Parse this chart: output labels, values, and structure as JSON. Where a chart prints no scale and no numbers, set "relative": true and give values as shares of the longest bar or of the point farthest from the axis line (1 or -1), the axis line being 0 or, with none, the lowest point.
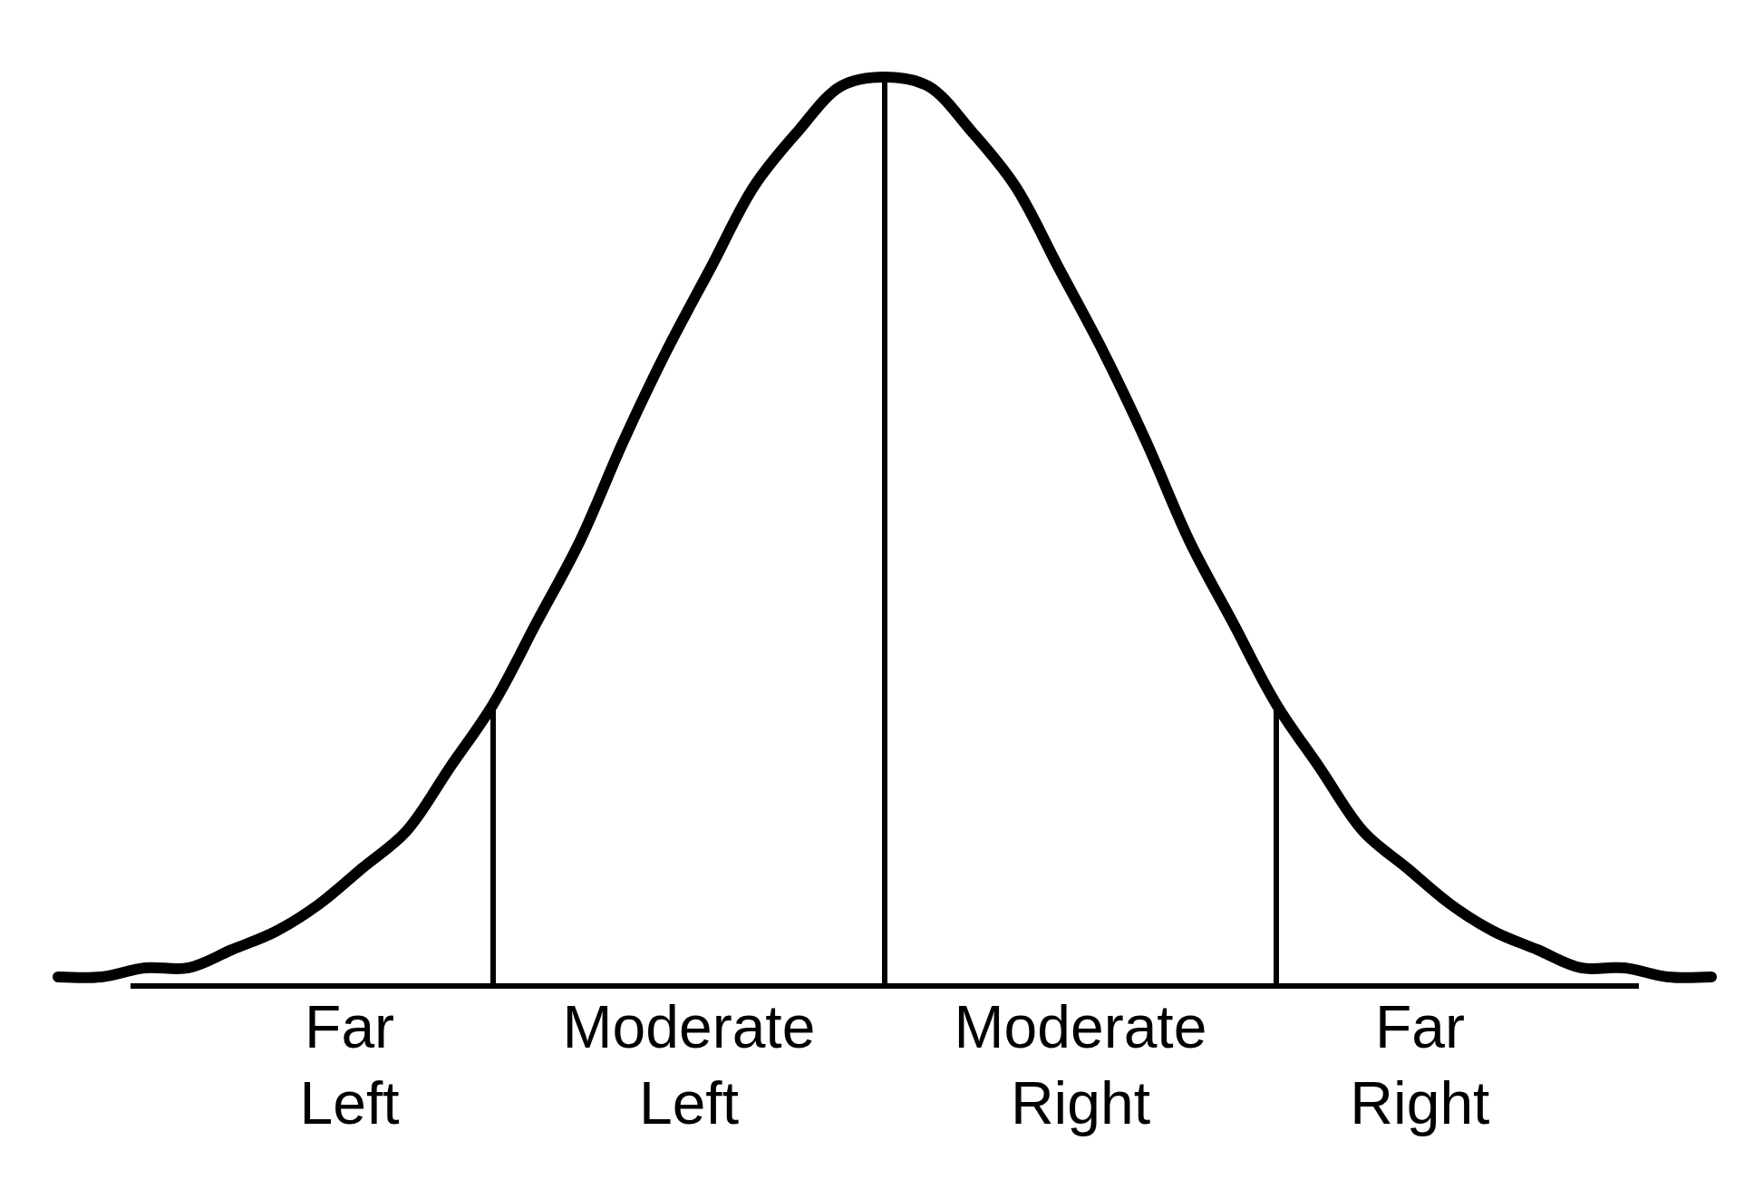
{
  "chart_data": {
    "type": "line",
    "relative": true,
    "marker": "none",
    "line_style": "solid",
    "categories": [
      null,
      null,
      null,
      null,
      null,
      null,
      null,
      null,
      null,
      null,
      null,
      null,
      null,
      null,
      null,
      null,
      null,
      null,
      null,
      null,
      null,
      null,
      null,
      null,
      null,
      null,
      null,
      null,
      null,
      null,
      null,
      null,
      null,
      null,
      null,
      null,
      null,
      null,
      null
    ],
    "series": [
      {
        "color": "#000000",
        "values": [
          0.01,
          0.01,
          0.02,
          0.02,
          0.04,
          0.06,
          0.09,
          0.13,
          0.17,
          0.24,
          0.31,
          0.4,
          0.49,
          0.6,
          0.7,
          0.79,
          0.88,
          0.94,
          0.99,
          1,
          0.99,
          0.94,
          0.88,
          0.79,
          0.7,
          0.6,
          0.49,
          0.4,
          0.31,
          0.24,
          0.17,
          0.13,
          0.09,
          0.06,
          0.04,
          0.02,
          0.02,
          0.01,
          0.01
        ]
      }
    ],
    "annotations": [
      "Far Left",
      "Moderate Left",
      "Moderate Right",
      "Far Right"
    ]
  }
}
